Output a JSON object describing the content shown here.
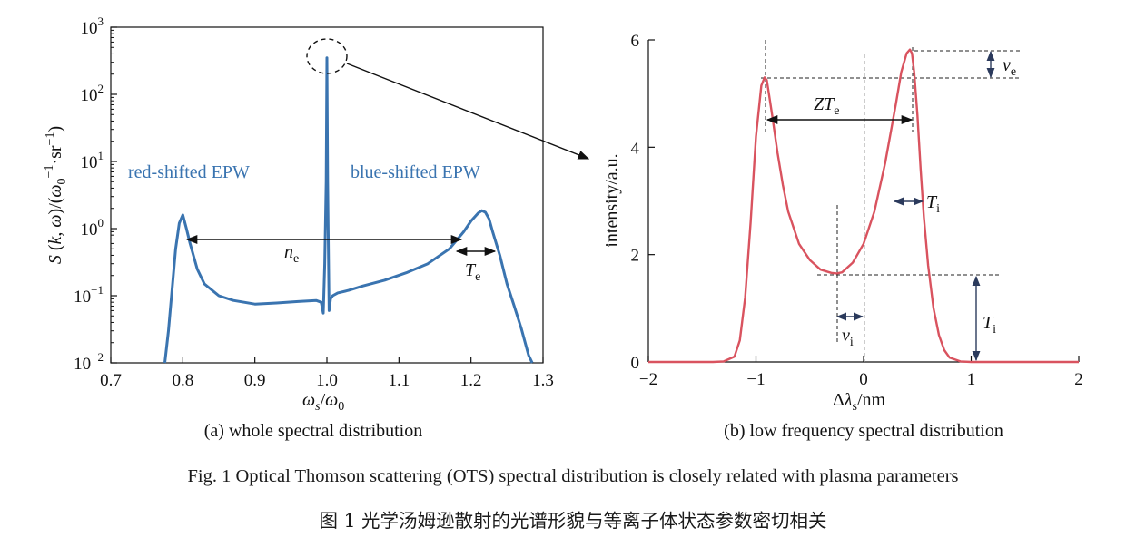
{
  "caption_en": "Fig. 1    Optical Thomson scattering (OTS) spectral distribution is closely related with plasma parameters",
  "caption_cn": "图 1    光学汤姆逊散射的光谱形貌与等离子体状态参数密切相关",
  "colors": {
    "left_line": "#3a74b0",
    "right_line": "#d9535f",
    "annot_blue": "#3a74b0"
  },
  "chart_data": [
    {
      "type": "line",
      "subtitle": "(a) whole spectral distribution",
      "xlabel": "ωs/ω0",
      "ylabel": "S (k, ω)/(ω0−1·sr−1)",
      "xlim": [
        0.7,
        1.3
      ],
      "ylim": [
        0.01,
        1000
      ],
      "yscale": "log",
      "xticks": [
        "0.7",
        "0.8",
        "0.9",
        "1.0",
        "1.1",
        "1.2",
        "1.3"
      ],
      "yticks": [
        "10−2",
        "10−1",
        "100",
        "101",
        "102",
        "103"
      ],
      "annotations": [
        "red-shifted EPW",
        "blue-shifted EPW",
        "ne",
        "Te"
      ],
      "series": [
        {
          "x": [
            0.775,
            0.78,
            0.785,
            0.79,
            0.795,
            0.8,
            0.805,
            0.81,
            0.82,
            0.83,
            0.85,
            0.87,
            0.9,
            0.93,
            0.96,
            0.985,
            0.992,
            0.995,
            0.997,
            0.999,
            1.0,
            1.001,
            1.003,
            1.005,
            1.008,
            1.015,
            1.03,
            1.05,
            1.08,
            1.11,
            1.14,
            1.17,
            1.19,
            1.2,
            1.21,
            1.215,
            1.22,
            1.225,
            1.23,
            1.24,
            1.25,
            1.26,
            1.27,
            1.28,
            1.285
          ],
          "y": [
            0.01,
            0.03,
            0.12,
            0.5,
            1.2,
            1.6,
            1.0,
            0.6,
            0.25,
            0.15,
            0.1,
            0.085,
            0.075,
            0.078,
            0.082,
            0.085,
            0.08,
            0.055,
            0.3,
            5,
            350,
            5,
            0.06,
            0.09,
            0.1,
            0.11,
            0.12,
            0.14,
            0.17,
            0.22,
            0.3,
            0.5,
            0.9,
            1.3,
            1.7,
            1.85,
            1.75,
            1.4,
            0.9,
            0.4,
            0.15,
            0.07,
            0.032,
            0.013,
            0.01
          ]
        }
      ]
    },
    {
      "type": "line",
      "subtitle": "(b) low frequency spectral distribution",
      "xlabel": "Δλs/nm",
      "ylabel": "intensity/a.u.",
      "xlim": [
        -2,
        2
      ],
      "ylim": [
        0,
        6
      ],
      "xticks": [
        "−2",
        "−1",
        "0",
        "1",
        "2"
      ],
      "yticks": [
        "0",
        "2",
        "4",
        "6"
      ],
      "annotations": [
        "ve",
        "ZTe",
        "Ti",
        "vi",
        "Ti"
      ],
      "series": [
        {
          "x": [
            -2.0,
            -1.6,
            -1.4,
            -1.3,
            -1.2,
            -1.15,
            -1.1,
            -1.05,
            -1.0,
            -0.95,
            -0.92,
            -0.9,
            -0.88,
            -0.85,
            -0.8,
            -0.75,
            -0.7,
            -0.6,
            -0.5,
            -0.4,
            -0.3,
            -0.25,
            -0.2,
            -0.1,
            0.0,
            0.1,
            0.2,
            0.3,
            0.35,
            0.4,
            0.43,
            0.45,
            0.47,
            0.5,
            0.53,
            0.56,
            0.6,
            0.65,
            0.7,
            0.75,
            0.8,
            0.9,
            1.0,
            1.2,
            2.0
          ],
          "y": [
            0.0,
            0.0,
            0.0,
            0.01,
            0.1,
            0.4,
            1.2,
            2.6,
            4.2,
            5.15,
            5.3,
            5.25,
            5.0,
            4.6,
            3.9,
            3.3,
            2.8,
            2.2,
            1.9,
            1.72,
            1.66,
            1.65,
            1.67,
            1.85,
            2.2,
            2.8,
            3.7,
            4.8,
            5.4,
            5.75,
            5.82,
            5.75,
            5.4,
            4.6,
            3.6,
            2.7,
            1.8,
            1.0,
            0.5,
            0.22,
            0.08,
            0.01,
            0.0,
            0.0,
            0.0
          ]
        }
      ]
    }
  ]
}
